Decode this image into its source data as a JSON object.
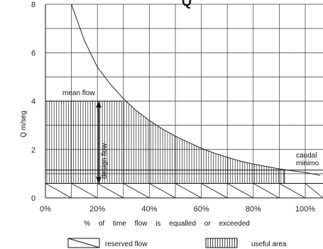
{
  "chart_data": {
    "type": "area",
    "title": "Q",
    "xlabel": "% of time flow is equalled or exceeded",
    "ylabel": "Q m/seg",
    "xlim": [
      0,
      100
    ],
    "ylim": [
      0,
      8
    ],
    "x_ticks": [
      "0%",
      "20%",
      "40%",
      "60%",
      "80%",
      "100%"
    ],
    "y_ticks": [
      "0",
      "2",
      "4",
      "6",
      "8"
    ],
    "grid": true,
    "flow_duration_curve": {
      "x": [
        10,
        15,
        20,
        25,
        30,
        35,
        40,
        45,
        50,
        55,
        60,
        65,
        70,
        75,
        80,
        85,
        90,
        95,
        100
      ],
      "y": [
        8.0,
        6.5,
        5.4,
        4.7,
        4.1,
        3.6,
        3.2,
        2.85,
        2.55,
        2.3,
        2.05,
        1.85,
        1.68,
        1.52,
        1.4,
        1.3,
        1.2,
        1.12,
        1.05
      ]
    },
    "mean_flow": 4.0,
    "reserved_flow": 0.6,
    "useful_area_end_x": 92,
    "annotations": {
      "mean_flow": "mean flow",
      "design_flow": "design flow",
      "caudal_line1": "caudal",
      "caudal_line2": "minimo"
    },
    "legend": [
      {
        "label": "reserved flow",
        "pattern": "diagonal"
      },
      {
        "label": "useful area",
        "pattern": "vertical-hatch"
      }
    ]
  }
}
